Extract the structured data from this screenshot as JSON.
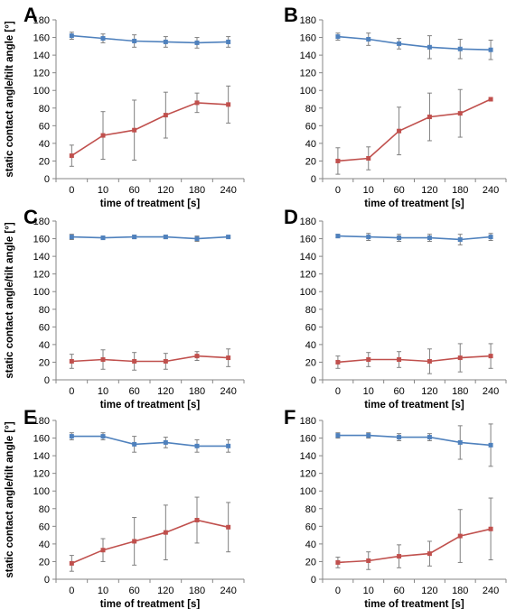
{
  "chart_data": [
    {
      "panel": "A",
      "type": "line",
      "xlabel": "time of treatment [s]",
      "ylabel": "static contact angle/tilt angle [°]",
      "categories": [
        "0",
        "10",
        "60",
        "120",
        "180",
        "240"
      ],
      "ylim": [
        0,
        180
      ],
      "yticks": [
        0,
        20,
        40,
        60,
        80,
        100,
        120,
        140,
        160,
        180
      ],
      "series": [
        {
          "color": "#4f81bd",
          "values": [
            162,
            159,
            156,
            155,
            154,
            155
          ],
          "err": [
            4,
            5,
            7,
            6,
            6,
            6
          ]
        },
        {
          "color": "#c0504d",
          "values": [
            26,
            49,
            55,
            72,
            86,
            84
          ],
          "err": [
            12,
            27,
            34,
            26,
            11,
            21
          ]
        }
      ]
    },
    {
      "panel": "B",
      "type": "line",
      "xlabel": "time of treatment [s]",
      "ylabel": "",
      "categories": [
        "0",
        "10",
        "60",
        "120",
        "180",
        "240"
      ],
      "ylim": [
        0,
        180
      ],
      "yticks": [
        0,
        20,
        40,
        60,
        80,
        100,
        120,
        140,
        160,
        180
      ],
      "series": [
        {
          "color": "#4f81bd",
          "values": [
            161,
            158,
            153,
            149,
            147,
            146
          ],
          "err": [
            4,
            7,
            6,
            13,
            11,
            11
          ]
        },
        {
          "color": "#c0504d",
          "values": [
            20,
            23,
            54,
            70,
            74,
            90
          ],
          "err": [
            15,
            13,
            27,
            27,
            27,
            0
          ]
        }
      ]
    },
    {
      "panel": "C",
      "type": "line",
      "xlabel": "time of treatment [s]",
      "ylabel": "static contact angle/tilt angle [°]",
      "categories": [
        "0",
        "10",
        "60",
        "120",
        "180",
        "240"
      ],
      "ylim": [
        0,
        180
      ],
      "yticks": [
        0,
        20,
        40,
        60,
        80,
        100,
        120,
        140,
        160,
        180
      ],
      "series": [
        {
          "color": "#4f81bd",
          "values": [
            162,
            161,
            162,
            162,
            160,
            162
          ],
          "err": [
            3,
            2,
            2,
            2,
            3,
            1
          ]
        },
        {
          "color": "#c0504d",
          "values": [
            21,
            23,
            21,
            21,
            27,
            25
          ],
          "err": [
            8,
            11,
            10,
            9,
            5,
            10
          ]
        }
      ]
    },
    {
      "panel": "D",
      "type": "line",
      "xlabel": "time of treatment [s]",
      "ylabel": "",
      "categories": [
        "0",
        "10",
        "60",
        "120",
        "180",
        "240"
      ],
      "ylim": [
        0,
        180
      ],
      "yticks": [
        0,
        20,
        40,
        60,
        80,
        100,
        120,
        140,
        160,
        180
      ],
      "series": [
        {
          "color": "#4f81bd",
          "values": [
            163,
            162,
            161,
            161,
            159,
            162
          ],
          "err": [
            2,
            4,
            4,
            4,
            6,
            4
          ]
        },
        {
          "color": "#c0504d",
          "values": [
            20,
            23,
            23,
            21,
            25,
            27
          ],
          "err": [
            7,
            8,
            9,
            14,
            16,
            14
          ]
        }
      ]
    },
    {
      "panel": "E",
      "type": "line",
      "xlabel": "time of treatment [s]",
      "ylabel": "static contact angle/tilt angle [°]",
      "categories": [
        "0",
        "10",
        "60",
        "120",
        "180",
        "240"
      ],
      "ylim": [
        0,
        180
      ],
      "yticks": [
        0,
        20,
        40,
        60,
        80,
        100,
        120,
        140,
        160,
        180
      ],
      "series": [
        {
          "color": "#4f81bd",
          "values": [
            162,
            162,
            153,
            155,
            151,
            151
          ],
          "err": [
            4,
            4,
            9,
            6,
            7,
            7
          ]
        },
        {
          "color": "#c0504d",
          "values": [
            18,
            33,
            43,
            53,
            67,
            59
          ],
          "err": [
            9,
            13,
            27,
            31,
            26,
            28
          ]
        }
      ]
    },
    {
      "panel": "F",
      "type": "line",
      "xlabel": "time of treatment [s]",
      "ylabel": "",
      "categories": [
        "0",
        "10",
        "60",
        "120",
        "180",
        "240"
      ],
      "ylim": [
        0,
        180
      ],
      "yticks": [
        0,
        20,
        40,
        60,
        80,
        100,
        120,
        140,
        160,
        180
      ],
      "series": [
        {
          "color": "#4f81bd",
          "values": [
            163,
            163,
            161,
            161,
            155,
            152
          ],
          "err": [
            3,
            3,
            4,
            4,
            19,
            24
          ]
        },
        {
          "color": "#c0504d",
          "values": [
            19,
            21,
            26,
            29,
            49,
            57
          ],
          "err": [
            6,
            10,
            13,
            14,
            30,
            35
          ]
        }
      ]
    }
  ]
}
